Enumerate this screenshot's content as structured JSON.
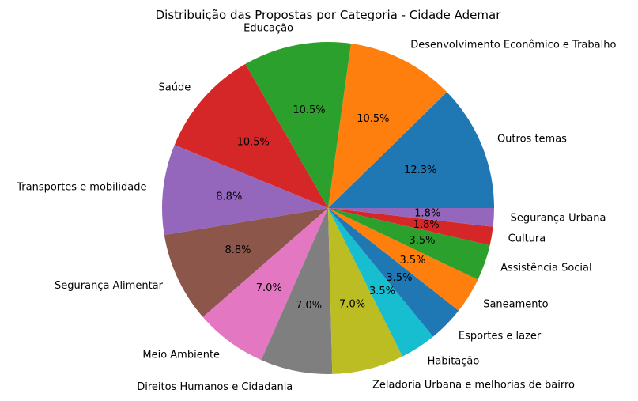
{
  "chart_data": {
    "type": "pie",
    "title": "Distribuição das Propostas por Categoria - Cidade Ademar",
    "start_angle_deg": 0,
    "direction": "counterclockwise",
    "slices": [
      {
        "label": "Outros temas",
        "value": 12.3,
        "pct_label": "12.3%",
        "color": "#1f77b4"
      },
      {
        "label": "Desenvolvimento Econômico e Trabalho",
        "value": 10.5,
        "pct_label": "10.5%",
        "color": "#ff7f0e"
      },
      {
        "label": "Educação",
        "value": 10.5,
        "pct_label": "10.5%",
        "color": "#2ca02c"
      },
      {
        "label": "Saúde",
        "value": 10.5,
        "pct_label": "10.5%",
        "color": "#d62728"
      },
      {
        "label": "Transportes e mobilidade",
        "value": 8.8,
        "pct_label": "8.8%",
        "color": "#9467bd"
      },
      {
        "label": "Segurança Alimentar",
        "value": 8.8,
        "pct_label": "8.8%",
        "color": "#8c564b"
      },
      {
        "label": "Meio Ambiente",
        "value": 7.0,
        "pct_label": "7.0%",
        "color": "#e377c2"
      },
      {
        "label": "Direitos Humanos e Cidadania",
        "value": 7.0,
        "pct_label": "7.0%",
        "color": "#7f7f7f"
      },
      {
        "label": "Zeladoria Urbana e melhorias de bairro",
        "value": 7.0,
        "pct_label": "7.0%",
        "color": "#bcbd22"
      },
      {
        "label": "Habitação",
        "value": 3.5,
        "pct_label": "3.5%",
        "color": "#17becf"
      },
      {
        "label": "Esportes e lazer",
        "value": 3.5,
        "pct_label": "3.5%",
        "color": "#1f77b4"
      },
      {
        "label": "Saneamento",
        "value": 3.5,
        "pct_label": "3.5%",
        "color": "#ff7f0e"
      },
      {
        "label": "Assistência Social",
        "value": 3.5,
        "pct_label": "3.5%",
        "color": "#2ca02c"
      },
      {
        "label": "Cultura",
        "value": 1.8,
        "pct_label": "1.8%",
        "color": "#d62728"
      },
      {
        "label": "Segurança Urbana",
        "value": 1.8,
        "pct_label": "1.8%",
        "color": "#9467bd"
      }
    ]
  }
}
